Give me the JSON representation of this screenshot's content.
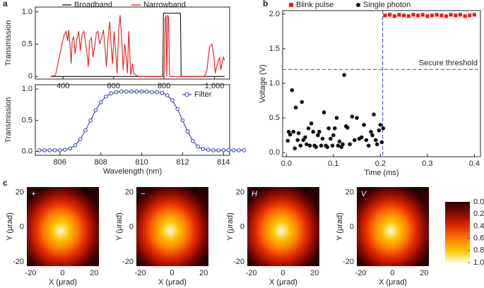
{
  "chart_data": [
    {
      "type": "line",
      "panel_label": "a",
      "ylabel": "Transmission",
      "xlim": [
        290,
        1060
      ],
      "ylim": [
        -0.04,
        1.075
      ],
      "xticks": [
        400,
        600,
        800,
        {
          "value": 1000,
          "label": "1,000"
        }
      ],
      "yticks": [
        0,
        0.5,
        {
          "value": 1,
          "label": "1.0"
        }
      ],
      "series": [
        {
          "name": "Broadband",
          "color": "#111111",
          "x": [
            350,
            795,
            798,
            865,
            868,
            1040
          ],
          "values": [
            0,
            0,
            0.98,
            0.98,
            0,
            0
          ]
        },
        {
          "name": "Narrowband",
          "color": "#e0201b",
          "x": [
            350,
            370,
            385,
            395,
            405,
            412,
            418,
            422,
            428,
            432,
            436,
            442,
            448,
            455,
            462,
            468,
            475,
            482,
            488,
            495,
            500,
            505,
            512,
            518,
            525,
            532,
            538,
            545,
            552,
            560,
            566,
            572,
            578,
            585,
            590,
            596,
            602,
            608,
            614,
            620,
            626,
            632,
            638,
            644,
            650,
            655,
            660,
            664,
            668,
            675,
            680,
            690,
            700,
            800,
            805,
            808,
            811,
            815,
            818,
            822,
            960,
            970,
            980,
            990,
            998,
            1003,
            1008,
            1012,
            1020,
            1025,
            1030,
            1035,
            1040
          ],
          "values": [
            0,
            0.02,
            0.3,
            0.5,
            0.65,
            0.7,
            0.55,
            0.72,
            0.45,
            0.2,
            0.55,
            0.62,
            0.35,
            0.58,
            0.7,
            0.4,
            0.65,
            0.7,
            0.55,
            0.35,
            0.15,
            0.55,
            0.6,
            0.3,
            0.45,
            0.68,
            0.7,
            0.5,
            0.6,
            0.72,
            0.45,
            0.15,
            0.6,
            0.85,
            0.5,
            0.2,
            0.7,
            0.4,
            0.05,
            0.7,
            0.95,
            0.6,
            0.1,
            0.5,
            0.3,
            0.05,
            0.7,
            0.4,
            0.02,
            0.2,
            0.05,
            0.02,
            0,
            0,
            0.9,
            0.95,
            0,
            0.95,
            0.9,
            0,
            0,
            0.1,
            0.45,
            0.5,
            0.3,
            0.05,
            0.15,
            0.2,
            0.3,
            0.1,
            0.2,
            0.3,
            0.25
          ]
        }
      ]
    },
    {
      "type": "line",
      "xlabel": "Wavelength (nm)",
      "ylabel": "Transmission",
      "xlim": [
        804.8,
        814.3
      ],
      "ylim": [
        -0.06,
        1.07
      ],
      "xticks": [
        806,
        808,
        810,
        812,
        814
      ],
      "yticks": [
        {
          "value": 0,
          "label": "0.0"
        },
        0.5,
        {
          "value": 1,
          "label": "1.0"
        }
      ],
      "series": [
        {
          "name": "Filter",
          "color": "#2b3f9c",
          "marker": "circle",
          "x": [
            805,
            805.25,
            805.5,
            805.75,
            806,
            806.25,
            806.5,
            806.75,
            807,
            807.25,
            807.5,
            807.75,
            808,
            808.25,
            808.5,
            808.75,
            809,
            809.25,
            809.5,
            809.75,
            810,
            810.25,
            810.5,
            810.75,
            811,
            811.25,
            811.5,
            811.75,
            812,
            812.25,
            812.5,
            812.75,
            813,
            813.25,
            813.5,
            813.75,
            814,
            814.25,
            814.5,
            814.75,
            815
          ],
          "values": [
            0.02,
            0.02,
            0.02,
            0.02,
            0.02,
            0.03,
            0.05,
            0.1,
            0.2,
            0.34,
            0.5,
            0.66,
            0.79,
            0.88,
            0.93,
            0.95,
            0.96,
            0.96,
            0.96,
            0.96,
            0.96,
            0.96,
            0.95,
            0.95,
            0.94,
            0.9,
            0.82,
            0.68,
            0.5,
            0.32,
            0.17,
            0.08,
            0.04,
            0.03,
            0.02,
            0.02,
            0.02,
            0.02,
            0.02,
            0.02,
            0.02
          ]
        }
      ]
    },
    {
      "type": "scatter",
      "panel_label": "b",
      "xlabel": "Time (ms)",
      "ylabel": "Voltage (V)",
      "xlim": [
        -0.008,
        0.413
      ],
      "ylim": [
        -0.06,
        2.05
      ],
      "xticks": [
        {
          "value": 0,
          "label": "0.0"
        },
        0.1,
        0.2,
        0.3,
        0.4
      ],
      "yticks": [
        {
          "value": 0,
          "label": "0.0"
        },
        0.5,
        {
          "value": 1,
          "label": "1.0"
        },
        1.5,
        {
          "value": 2,
          "label": "2.0"
        }
      ],
      "annotations": [
        {
          "text": "Secure threshold",
          "y": 1.2
        }
      ],
      "divider_x": 0.205,
      "series": [
        {
          "name": "Blink pulse",
          "color": "#e0201b",
          "marker": "square",
          "x": [
            0.21,
            0.22,
            0.23,
            0.24,
            0.25,
            0.26,
            0.27,
            0.28,
            0.29,
            0.3,
            0.31,
            0.32,
            0.33,
            0.34,
            0.35,
            0.36,
            0.37,
            0.38,
            0.39,
            0.4
          ],
          "values": [
            1.98,
            1.99,
            1.97,
            1.99,
            1.98,
            1.97,
            1.99,
            1.98,
            1.99,
            1.97,
            1.98,
            1.99,
            1.98,
            1.97,
            1.99,
            1.98,
            1.99,
            1.97,
            1.98,
            1.99
          ]
        },
        {
          "name": "Single photon",
          "color": "#111111",
          "marker": "circle",
          "x": [
            0.003,
            0.005,
            0.008,
            0.012,
            0.015,
            0.018,
            0.02,
            0.024,
            0.026,
            0.03,
            0.033,
            0.036,
            0.04,
            0.043,
            0.047,
            0.05,
            0.053,
            0.057,
            0.06,
            0.063,
            0.067,
            0.07,
            0.074,
            0.077,
            0.08,
            0.084,
            0.087,
            0.09,
            0.094,
            0.098,
            0.1,
            0.103,
            0.107,
            0.11,
            0.113,
            0.117,
            0.12,
            0.123,
            0.127,
            0.13,
            0.135,
            0.14,
            0.145,
            0.15,
            0.155,
            0.16,
            0.165,
            0.17,
            0.175,
            0.18,
            0.183,
            0.186,
            0.19,
            0.193,
            0.197,
            0.2,
            0.203,
            0.206
          ],
          "values": [
            0.17,
            0.3,
            0.26,
            0.9,
            0.3,
            0.06,
            0.65,
            0.18,
            0.28,
            0.1,
            0.73,
            0.18,
            0.22,
            0.12,
            0.35,
            0.1,
            0.42,
            0.3,
            0.1,
            0.08,
            0.25,
            0.3,
            0.1,
            0.2,
            0.58,
            0.1,
            0.08,
            0.35,
            0.2,
            0.1,
            0.25,
            0.35,
            0.5,
            0.1,
            0.16,
            0.08,
            0.12,
            1.12,
            0.38,
            0.36,
            0.12,
            0.52,
            0.18,
            0.5,
            0.2,
            0.22,
            0.4,
            0.18,
            0.1,
            0.3,
            0.25,
            0.55,
            0.18,
            0.12,
            0.32,
            0.4,
            0.15,
            0.35
          ]
        }
      ]
    },
    {
      "type": "heatmap",
      "panel_label": "c",
      "title": "+",
      "xlabel": "X (μrad)",
      "ylabel": "Y (μrad)",
      "xlim": [
        -22.5,
        23
      ],
      "ylim": [
        -22.5,
        23
      ],
      "xticks": [
        -20,
        0,
        20
      ],
      "yticks": [
        -20,
        0,
        20
      ]
    },
    {
      "type": "heatmap",
      "title": "−",
      "xlabel": "X (μrad)",
      "ylabel": "Y (μrad)",
      "xlim": [
        -22.5,
        23
      ],
      "ylim": [
        -22.5,
        23
      ],
      "xticks": [
        -20,
        0,
        20
      ],
      "yticks": [
        -20,
        0,
        20
      ]
    },
    {
      "type": "heatmap",
      "title": "H",
      "xlabel": "X (μrad)",
      "ylabel": "Y (μrad)",
      "xlim": [
        -22.5,
        23
      ],
      "ylim": [
        -22.5,
        23
      ],
      "xticks": [
        -20,
        0,
        20
      ],
      "yticks": [
        -20,
        0,
        20
      ]
    },
    {
      "type": "heatmap",
      "title": "V",
      "xlabel": "X (μrad)",
      "ylabel": "Y (μrad)",
      "xlim": [
        -22.5,
        23
      ],
      "ylim": [
        -22.5,
        23
      ],
      "xticks": [
        -20,
        0,
        20
      ],
      "yticks": [
        -20,
        0,
        20
      ]
    },
    {
      "type": "colorbar",
      "ylim": [
        0,
        1
      ],
      "yticks": [
        {
          "value": 0,
          "label": "0.0"
        },
        0.2,
        0.4,
        0.6,
        0.8,
        {
          "value": 1,
          "label": "1.0"
        }
      ],
      "colors": [
        "#2b0000",
        "#8a0a00",
        "#e02a00",
        "#ff7a00",
        "#ffc400",
        "#fffbe0"
      ]
    }
  ]
}
